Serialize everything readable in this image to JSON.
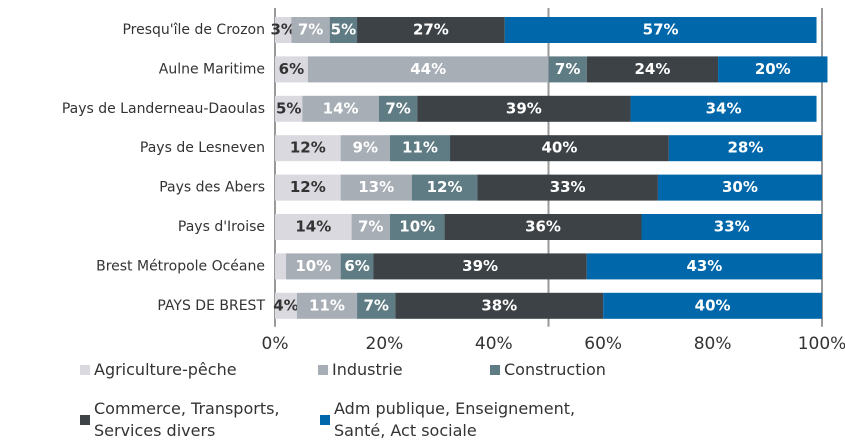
{
  "chart_data": {
    "type": "stacked-barh",
    "categories": [
      "Presqu'île de Crozon",
      "Aulne Maritime",
      "Pays de Landerneau-Daoulas",
      "Pays de Lesneven",
      "Pays des Abers",
      "Pays d'Iroise",
      "Brest Métropole Océane",
      "PAYS DE BREST"
    ],
    "series": [
      {
        "name": "Agriculture-pêche",
        "color": "#d9d9df",
        "values": [
          3,
          6,
          5,
          12,
          12,
          14,
          2,
          4
        ],
        "value_labels": [
          "3%",
          "6%",
          "5%",
          "12%",
          "12%",
          "14%",
          null,
          "4%"
        ]
      },
      {
        "name": "Industrie",
        "color": "#a7aeb5",
        "values": [
          7,
          44,
          14,
          9,
          13,
          7,
          10,
          11
        ],
        "value_labels": [
          "7%",
          "44%",
          "14%",
          "9%",
          "13%",
          "7%",
          "10%",
          "11%"
        ]
      },
      {
        "name": "Construction",
        "color": "#5f7b83",
        "values": [
          5,
          7,
          7,
          11,
          12,
          10,
          6,
          7
        ],
        "value_labels": [
          "5%",
          "7%",
          "7%",
          "11%",
          "12%",
          "10%",
          "6%",
          "7%"
        ]
      },
      {
        "name": "Commerce, Transports, Services divers",
        "color": "#3c4246",
        "values": [
          27,
          24,
          39,
          40,
          33,
          36,
          39,
          38
        ],
        "value_labels": [
          "27%",
          "24%",
          "39%",
          "40%",
          "33%",
          "36%",
          "39%",
          "38%"
        ]
      },
      {
        "name": "Adm publique, Enseignement, Santé, Act sociale",
        "color": "#0067aa",
        "values": [
          57,
          20,
          34,
          28,
          30,
          33,
          43,
          40
        ],
        "value_labels": [
          "57%",
          "20%",
          "34%",
          "28%",
          "30%",
          "33%",
          "43%",
          "40%"
        ]
      }
    ],
    "xlim": [
      0,
      100
    ],
    "xticks": [
      {
        "value": 0,
        "label": "0%"
      },
      {
        "value": 20,
        "label": "20%"
      },
      {
        "value": 40,
        "label": "40%"
      },
      {
        "value": 60,
        "label": "60%"
      },
      {
        "value": 80,
        "label": "80%"
      },
      {
        "value": 100,
        "label": "100%"
      }
    ],
    "xgrid": [
      0,
      50,
      100
    ],
    "legend": "bottom"
  }
}
